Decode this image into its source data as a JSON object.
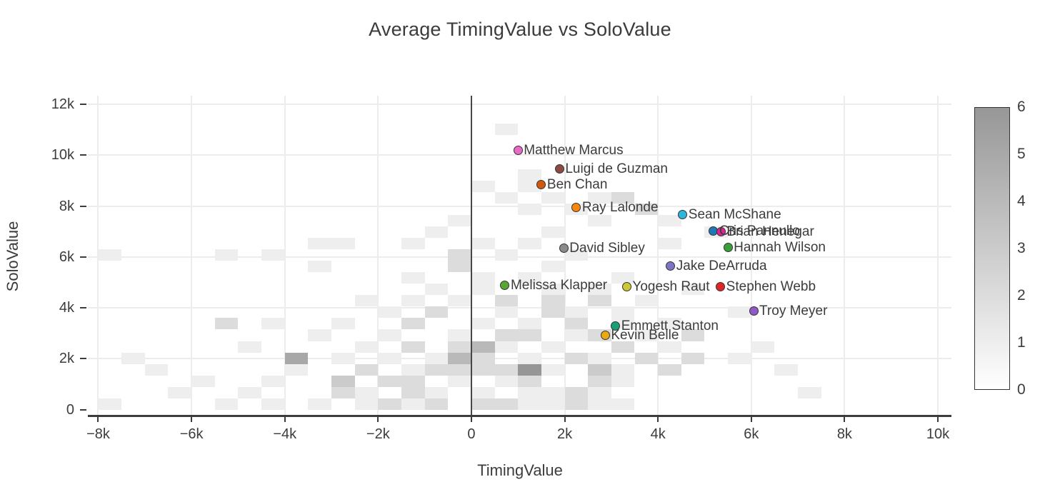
{
  "title": "Average TimingValue vs SoloValue",
  "chart_data": {
    "type": "scatter",
    "title": "Average TimingValue vs SoloValue",
    "xlabel": "TimingValue",
    "ylabel": "SoloValue",
    "xlim": [
      -8222,
      10291
    ],
    "ylim": [
      -230,
      12333
    ],
    "grid": true,
    "zero_line_x": 0,
    "x_tick_values": [
      -8000,
      -6000,
      -4000,
      -2000,
      0,
      2000,
      4000,
      6000,
      8000,
      10000
    ],
    "x_tick_labels": [
      "−8k",
      "−6k",
      "−4k",
      "−2k",
      "0",
      "2k",
      "4k",
      "6k",
      "8k",
      "10k"
    ],
    "y_tick_values": [
      0,
      2000,
      4000,
      6000,
      8000,
      10000,
      12000
    ],
    "y_tick_labels": [
      "0",
      "2k",
      "4k",
      "6k",
      "8k",
      "10k",
      "12k"
    ],
    "points": [
      {
        "name": "Matthew Marcus",
        "x": 1000,
        "y": 10200,
        "color": "#e86ac4"
      },
      {
        "name": "Luigi de Guzman",
        "x": 1890,
        "y": 9450,
        "color": "#8e4a41"
      },
      {
        "name": "Ben Chan",
        "x": 1500,
        "y": 8850,
        "color": "#d2580e"
      },
      {
        "name": "Ray Lalonde",
        "x": 2250,
        "y": 7940,
        "color": "#f5870f"
      },
      {
        "name": "Sean McShane",
        "x": 4530,
        "y": 7660,
        "color": "#2ab7d9"
      },
      {
        "name": "Cris Pannullo",
        "x": 5190,
        "y": 7020,
        "color": "#2077b8"
      },
      {
        "name": "Brian Henegar",
        "x": 5350,
        "y": 7000,
        "color": "#dc2490"
      },
      {
        "name": "Hannah Wilson",
        "x": 5500,
        "y": 6380,
        "color": "#38a03a"
      },
      {
        "name": "David Sibley",
        "x": 1980,
        "y": 6350,
        "color": "#8a8a8a"
      },
      {
        "name": "Jake DeArruda",
        "x": 4270,
        "y": 5650,
        "color": "#7d74c8"
      },
      {
        "name": "Melissa Klapper",
        "x": 720,
        "y": 4880,
        "color": "#57a733"
      },
      {
        "name": "Yogesh Raut",
        "x": 3330,
        "y": 4830,
        "color": "#ccc835"
      },
      {
        "name": "Stephen Webb",
        "x": 5340,
        "y": 4830,
        "color": "#de2626"
      },
      {
        "name": "Troy Meyer",
        "x": 6050,
        "y": 3870,
        "color": "#9159c8"
      },
      {
        "name": "Emmett Stanton",
        "x": 3090,
        "y": 3290,
        "color": "#1b9e78"
      },
      {
        "name": "Kevin Belle",
        "x": 2870,
        "y": 2930,
        "color": "#eaa812"
      }
    ],
    "heatmap": {
      "bin_width": 500,
      "bin_height": 450,
      "min_value": 0,
      "max_value": 6,
      "min_color": "#ffffff",
      "max_color": "#969696",
      "cells": [
        [
          -7750,
          225,
          1
        ],
        [
          -5250,
          225,
          1
        ],
        [
          -4250,
          225,
          1
        ],
        [
          -3250,
          225,
          1
        ],
        [
          -2250,
          225,
          1
        ],
        [
          -1750,
          225,
          2
        ],
        [
          -1250,
          225,
          1
        ],
        [
          -750,
          225,
          2
        ],
        [
          250,
          225,
          2
        ],
        [
          750,
          225,
          2
        ],
        [
          1250,
          225,
          1
        ],
        [
          1750,
          225,
          1
        ],
        [
          2250,
          225,
          2
        ],
        [
          2750,
          225,
          1
        ],
        [
          3250,
          225,
          1
        ],
        [
          -6250,
          675,
          1
        ],
        [
          -4750,
          675,
          1
        ],
        [
          -2750,
          675,
          2
        ],
        [
          -2250,
          675,
          1
        ],
        [
          -1250,
          675,
          2
        ],
        [
          -750,
          675,
          1
        ],
        [
          250,
          675,
          1
        ],
        [
          1250,
          675,
          1
        ],
        [
          1750,
          675,
          1
        ],
        [
          2250,
          675,
          2
        ],
        [
          2750,
          675,
          1
        ],
        [
          7250,
          675,
          1
        ],
        [
          -5750,
          1125,
          1
        ],
        [
          -4250,
          1125,
          1
        ],
        [
          -2750,
          1125,
          3
        ],
        [
          -1750,
          1125,
          2
        ],
        [
          -1250,
          1125,
          2
        ],
        [
          -250,
          1125,
          1
        ],
        [
          750,
          1125,
          1
        ],
        [
          1250,
          1125,
          2
        ],
        [
          2750,
          1125,
          2
        ],
        [
          3250,
          1125,
          1
        ],
        [
          -6750,
          1575,
          1
        ],
        [
          -3750,
          1575,
          1
        ],
        [
          -2250,
          1575,
          2
        ],
        [
          -1250,
          1575,
          1
        ],
        [
          -750,
          1575,
          2
        ],
        [
          -250,
          1575,
          2
        ],
        [
          250,
          1575,
          2
        ],
        [
          750,
          1575,
          2
        ],
        [
          1250,
          1575,
          6
        ],
        [
          1750,
          1575,
          1
        ],
        [
          2750,
          1575,
          3
        ],
        [
          3250,
          1575,
          1
        ],
        [
          4250,
          1575,
          2
        ],
        [
          6750,
          1575,
          1
        ],
        [
          -7250,
          2025,
          1
        ],
        [
          -3750,
          2025,
          5
        ],
        [
          -2750,
          2025,
          1
        ],
        [
          -1750,
          2025,
          1
        ],
        [
          -750,
          2025,
          1
        ],
        [
          -250,
          2025,
          4
        ],
        [
          250,
          2025,
          2
        ],
        [
          1250,
          2025,
          1
        ],
        [
          2250,
          2025,
          2
        ],
        [
          2750,
          2025,
          1
        ],
        [
          3750,
          2025,
          2
        ],
        [
          4750,
          2025,
          2
        ],
        [
          5750,
          2025,
          1
        ],
        [
          -4750,
          2475,
          1
        ],
        [
          -2250,
          2475,
          1
        ],
        [
          -1250,
          2475,
          2
        ],
        [
          -250,
          2475,
          2
        ],
        [
          250,
          2475,
          4
        ],
        [
          750,
          2475,
          1
        ],
        [
          1750,
          2475,
          1
        ],
        [
          3250,
          2475,
          2
        ],
        [
          4250,
          2475,
          1
        ],
        [
          6250,
          2475,
          1
        ],
        [
          -3250,
          2925,
          1
        ],
        [
          -1750,
          2925,
          1
        ],
        [
          -250,
          2925,
          1
        ],
        [
          750,
          2925,
          2
        ],
        [
          1250,
          2925,
          2
        ],
        [
          2250,
          2925,
          1
        ],
        [
          2750,
          2925,
          2
        ],
        [
          3750,
          2925,
          1
        ],
        [
          4750,
          2925,
          2
        ],
        [
          -5250,
          3375,
          2
        ],
        [
          -4250,
          3375,
          1
        ],
        [
          -2750,
          3375,
          1
        ],
        [
          -1250,
          3375,
          2
        ],
        [
          250,
          3375,
          1
        ],
        [
          1250,
          3375,
          1
        ],
        [
          2250,
          3375,
          2
        ],
        [
          3250,
          3375,
          1
        ],
        [
          4250,
          3375,
          1
        ],
        [
          -1750,
          3825,
          1
        ],
        [
          -750,
          3825,
          2
        ],
        [
          750,
          3825,
          1
        ],
        [
          1750,
          3825,
          2
        ],
        [
          2250,
          3825,
          1
        ],
        [
          3250,
          3825,
          1
        ],
        [
          5750,
          3825,
          1
        ],
        [
          -2250,
          4275,
          1
        ],
        [
          -1250,
          4275,
          1
        ],
        [
          -250,
          4275,
          1
        ],
        [
          750,
          4275,
          2
        ],
        [
          1750,
          4275,
          2
        ],
        [
          2750,
          4275,
          2
        ],
        [
          3750,
          4275,
          1
        ],
        [
          -750,
          4725,
          1
        ],
        [
          250,
          4725,
          1
        ],
        [
          1750,
          4725,
          1
        ],
        [
          2750,
          4725,
          1
        ],
        [
          4750,
          4725,
          1
        ],
        [
          -1250,
          5175,
          1
        ],
        [
          250,
          5175,
          1
        ],
        [
          1250,
          5175,
          1
        ],
        [
          3250,
          5175,
          1
        ],
        [
          -3250,
          5625,
          1
        ],
        [
          -250,
          5625,
          2
        ],
        [
          1750,
          5625,
          1
        ],
        [
          -7750,
          6075,
          1
        ],
        [
          -5250,
          6075,
          1
        ],
        [
          -4250,
          6075,
          1
        ],
        [
          -250,
          6075,
          2
        ],
        [
          750,
          6075,
          1
        ],
        [
          2250,
          6075,
          1
        ],
        [
          -3250,
          6525,
          1
        ],
        [
          -2750,
          6525,
          1
        ],
        [
          -1250,
          6525,
          1
        ],
        [
          250,
          6525,
          1
        ],
        [
          1250,
          6525,
          1
        ],
        [
          4250,
          6525,
          1
        ],
        [
          -750,
          6975,
          1
        ],
        [
          1750,
          6975,
          1
        ],
        [
          5250,
          6975,
          1
        ],
        [
          -250,
          7425,
          1
        ],
        [
          2750,
          7425,
          1
        ],
        [
          4250,
          7425,
          1
        ],
        [
          1250,
          7875,
          1
        ],
        [
          2250,
          7875,
          1
        ],
        [
          3750,
          7875,
          2
        ],
        [
          750,
          8325,
          1
        ],
        [
          1750,
          8325,
          1
        ],
        [
          2750,
          8325,
          1
        ],
        [
          3250,
          8325,
          2
        ],
        [
          250,
          8775,
          1
        ],
        [
          1250,
          8775,
          1
        ],
        [
          1250,
          9225,
          1
        ],
        [
          750,
          11025,
          1
        ]
      ]
    },
    "colorbar": {
      "min": 0,
      "max": 6,
      "tick_labels": [
        "0",
        "1",
        "2",
        "3",
        "4",
        "5",
        "6"
      ]
    }
  },
  "style": {
    "accent_grid": "#ececec",
    "axis_color": "#3c3c3c",
    "marker_edge": "#333333"
  }
}
